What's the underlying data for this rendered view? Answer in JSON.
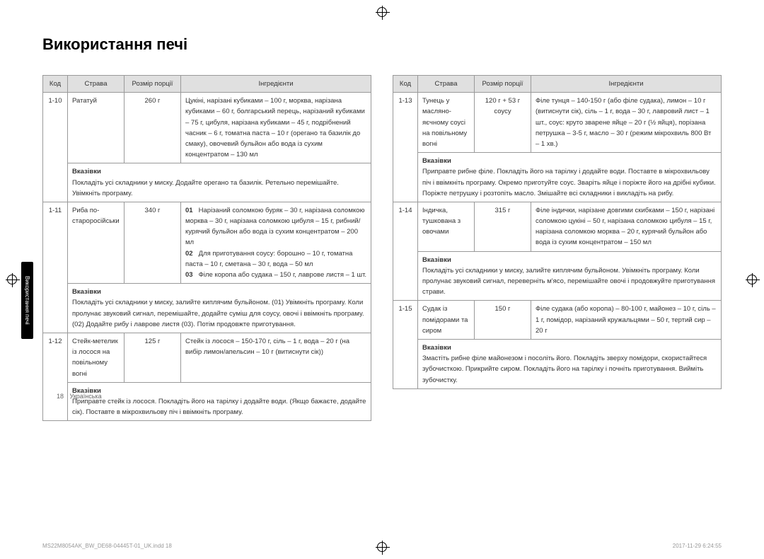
{
  "title": "Використання печі",
  "sideTab": "Використання печі",
  "headers": {
    "code": "Код",
    "dish": "Страва",
    "portion": "Розмір порції",
    "ingredients": "Інгредієнти"
  },
  "instrLabel": "Вказівки",
  "left": [
    {
      "code": "1-10",
      "dish": "Рататуй",
      "portion": "260 г",
      "ingredients": "Цукіні, нарізані кубиками – 100 г, морква, нарізана кубиками – 60 г, болгарський перець, нарізаний кубиками – 75 г, цибуля, нарізана кубиками – 45 г, подрібнений часник – 6 г, томатна паста – 10 г (орегано та базилік до смаку), овочевий бульйон або вода із сухим концентратом – 130 мл",
      "instructions": "Покладіть усі складники у миску. Додайте орегано та базилік. Ретельно перемішайте. Увімкніть програму."
    },
    {
      "code": "1-11",
      "dish": "Риба по-староросійськи",
      "portion": "340 г",
      "steps": [
        "Нарізаний соломкою буряк – 30 г, нарізана соломкою морква – 30 г, нарізана соломкою цибуля – 15 г, рибний/курячий бульйон або вода із сухим концентратом – 200 мл",
        "Для приготування соусу: борошно – 10 г, томатна паста – 10 г, сметана – 30 г, вода – 50 мл",
        "Філе коропа або судака – 150 г, лаврове листя – 1 шт."
      ],
      "instructions": "Покладіть усі складники у миску, залийте киплячим бульйоном. (01) Увімкніть програму. Коли пролунає звуковий сигнал, перемішайте, додайте суміш для соусу, овочі і ввімкніть програму. (02) Додайте рибу і лаврове листя (03). Потім продовжте приготування."
    },
    {
      "code": "1-12",
      "dish": "Стейк-метелик із лосося на повільному вогні",
      "portion": "125 г",
      "ingredients": "Стейк із лосося – 150-170 г, сіль – 1 г, вода – 20 г (на вибір лимон/апельсин – 10 г (витиснути сік))",
      "instructions": "Приправте стейк із лосося. Покладіть його на тарілку і додайте води. (Якщо бажаєте, додайте сік). Поставте в мікрохвильову піч і ввімкніть програму."
    }
  ],
  "right": [
    {
      "code": "1-13",
      "dish": "Тунець у масляно-яєчному соусі на повільному вогні",
      "portion": "120 г + 53 г соусу",
      "ingredients": "Філе тунця – 140-150 г (або філе судака), лимон – 10 г (витиснути сік), сіль – 1 г, вода – 30 г, лавровий лист – 1 шт., соус: круто зварене яйце – 20 г (½ яйця), порізана петрушка – 3-5 г, масло – 30 г (режим мікрохвиль 800 Вт – 1 хв.)",
      "instructions": "Приправте рибне філе. Покладіть його на тарілку і додайте води. Поставте в мікрохвильову піч і ввімкніть програму. Окремо приготуйте соус. Зваріть яйце і поріжте його на дрібні кубики. Поріжте петрушку і розтопіть масло. Змішайте всі складники і викладіть на рибу."
    },
    {
      "code": "1-14",
      "dish": "Індичка, тушкована з овочами",
      "portion": "315 г",
      "ingredients": "Філе індички, нарізане довгими скибками – 150 г, нарізані соломкою цукіні – 50 г, нарізана соломкою цибуля – 15 г, нарізана соломкою морква – 20 г, курячий бульйон або вода із сухим концентратом – 150 мл",
      "instructions": "Покладіть усі складники у миску, залийте киплячим бульйоном. Увімкніть програму. Коли пролунає звуковий сигнал, переверніть м'ясо, перемішайте овочі і продовжуйте приготування страви."
    },
    {
      "code": "1-15",
      "dish": "Судак із помідорами та сиром",
      "portion": "150 г",
      "ingredients": "Філе судака (або коропа) – 80-100 г, майонез – 10 г, сіль – 1 г, помідор, нарізаний кружальцями – 50 г, тертий сир – 20 г",
      "instructions": "Змастіть рибне філе майонезом і посоліть його. Покладіть зверху помідори, скористайтеся зубочисткою. Прикрийте сиром. Покладіть його на тарілку і почніть приготування. Вийміть зубочистку."
    }
  ],
  "footer": {
    "page": "18",
    "lang": "Українська"
  },
  "meta": {
    "file": "MS22M8054AK_BW_DE68-04445T-01_UK.indd   18",
    "date": "2017-11-29   6:24:55"
  }
}
